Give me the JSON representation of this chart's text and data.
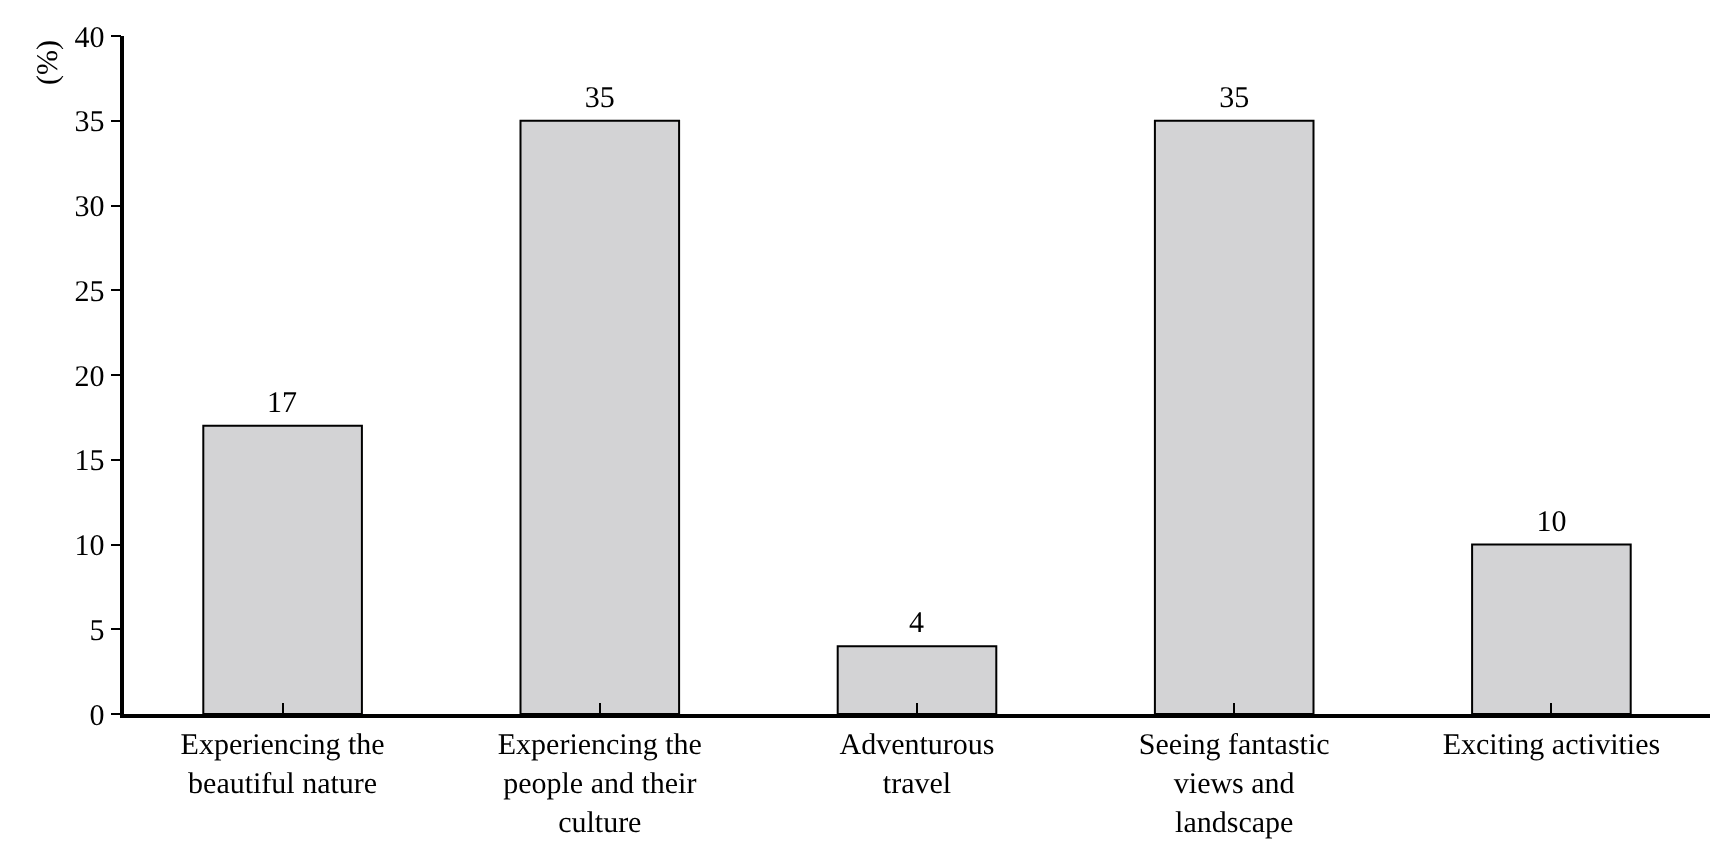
{
  "chart_data": {
    "type": "bar",
    "ylabel": "(%)",
    "categories": [
      "Experiencing the\nbeautiful nature",
      "Experiencing the\npeople and their\nculture",
      "Adventurous\ntravel",
      "Seeing fantastic\nviews and\nlandscape",
      "Exciting activities"
    ],
    "values": [
      17,
      35,
      4,
      35,
      10
    ],
    "color": "#d3d3d5",
    "ylim": [
      0,
      40
    ],
    "yticks": [
      0,
      5,
      10,
      15,
      20,
      25,
      30,
      35,
      40
    ],
    "data_labels": true,
    "legend": false
  }
}
